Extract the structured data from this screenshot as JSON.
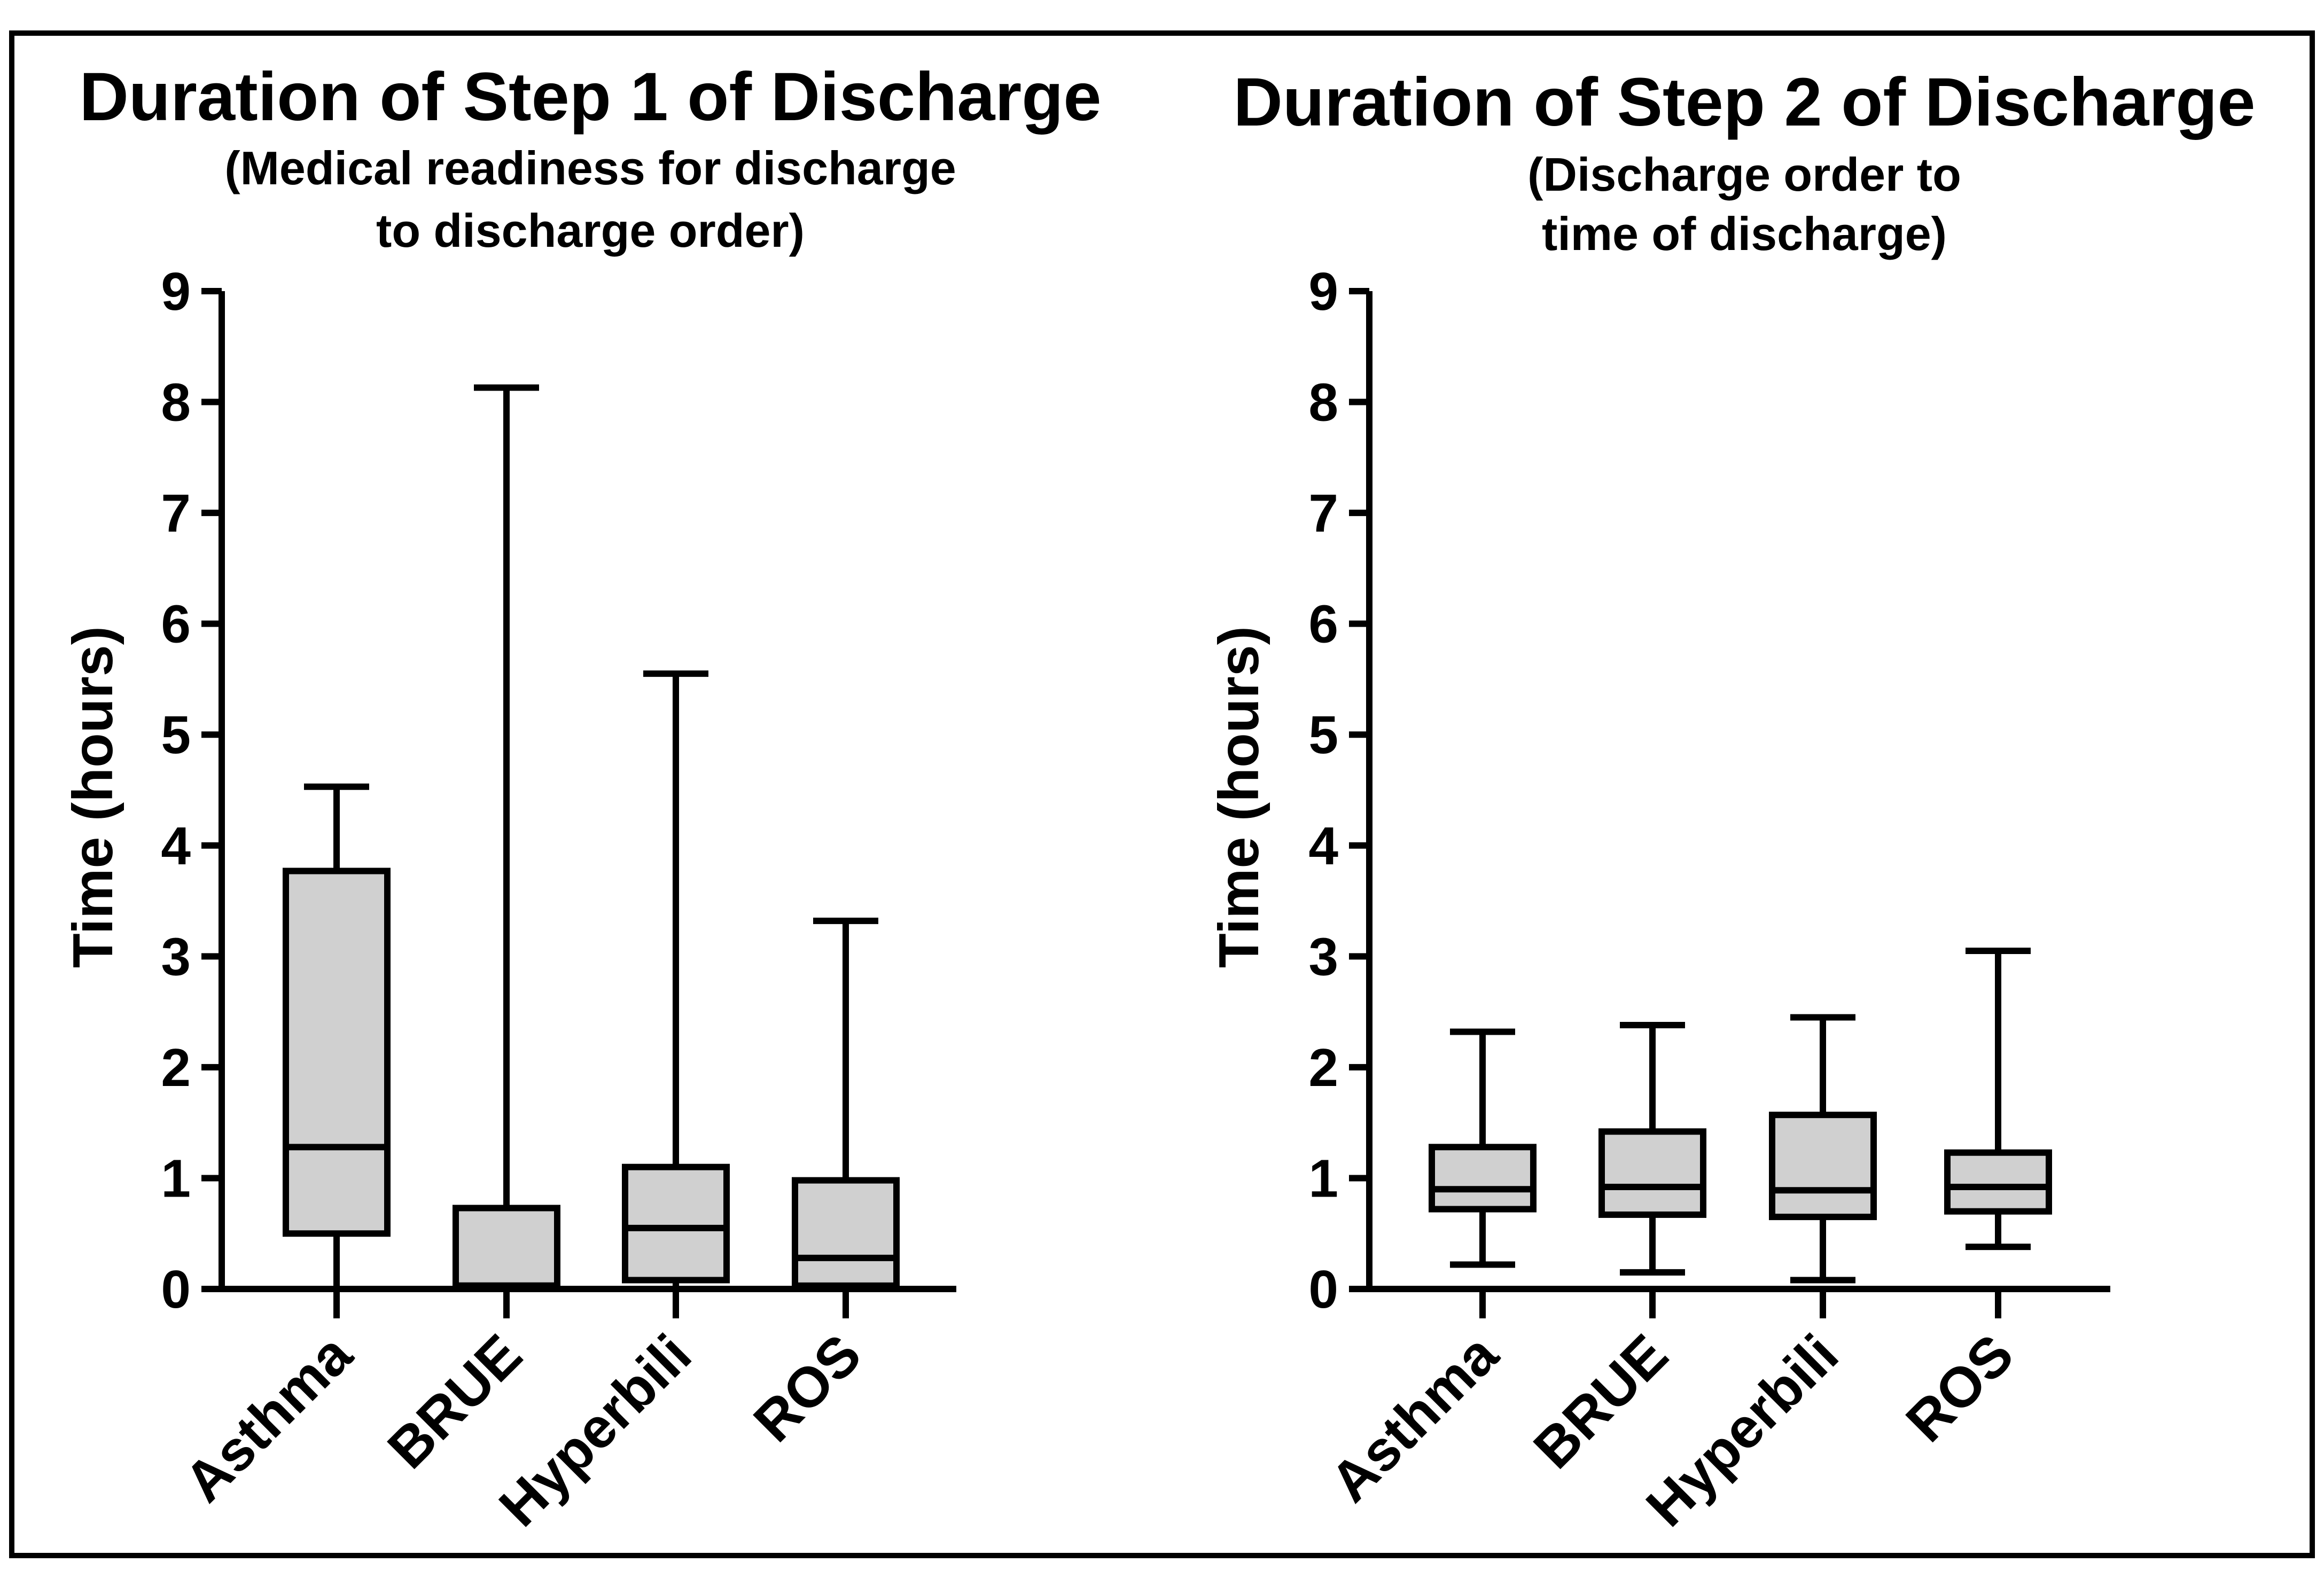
{
  "colors": {
    "box_fill": "#d0d0d0",
    "stroke": "#000000",
    "background": "#ffffff"
  },
  "chart_data": [
    {
      "type": "box",
      "title": "Duration of Step 1 of Discharge",
      "subtitle_lines": [
        "(Medical readiness for discharge",
        "to discharge order)"
      ],
      "xlabel": "",
      "ylabel": "Time (hours)",
      "ylim": [
        0,
        9
      ],
      "yticks": [
        "0",
        "1",
        "2",
        "3",
        "4",
        "5",
        "6",
        "7",
        "8",
        "9"
      ],
      "categories": [
        "Asthma",
        "BRUE",
        "Hyperbili",
        "ROS"
      ],
      "boxes": [
        {
          "category": "Asthma",
          "min": 0.0,
          "q1": 0.5,
          "median": 1.28,
          "q3": 3.77,
          "max": 4.53
        },
        {
          "category": "BRUE",
          "min": 0.0,
          "q1": 0.03,
          "median": 0.03,
          "q3": 0.73,
          "max": 8.13
        },
        {
          "category": "Hyperbili",
          "min": 0.0,
          "q1": 0.08,
          "median": 0.55,
          "q3": 1.1,
          "max": 5.55
        },
        {
          "category": "ROS",
          "min": 0.0,
          "q1": 0.03,
          "median": 0.28,
          "q3": 0.98,
          "max": 3.32
        }
      ],
      "grid": false
    },
    {
      "type": "box",
      "title": "Duration of Step 2 of Discharge",
      "subtitle_lines": [
        "(Discharge order to",
        "time of discharge)"
      ],
      "xlabel": "",
      "ylabel": "Time (hours)",
      "ylim": [
        0,
        9
      ],
      "yticks": [
        "0",
        "1",
        "2",
        "3",
        "4",
        "5",
        "6",
        "7",
        "8",
        "9"
      ],
      "categories": [
        "Asthma",
        "BRUE",
        "Hyperbili",
        "ROS"
      ],
      "boxes": [
        {
          "category": "Asthma",
          "min": 0.22,
          "q1": 0.72,
          "median": 0.9,
          "q3": 1.28,
          "max": 2.32
        },
        {
          "category": "BRUE",
          "min": 0.15,
          "q1": 0.67,
          "median": 0.92,
          "q3": 1.42,
          "max": 2.38
        },
        {
          "category": "Hyperbili",
          "min": 0.08,
          "q1": 0.65,
          "median": 0.89,
          "q3": 1.57,
          "max": 2.45
        },
        {
          "category": "ROS",
          "min": 0.38,
          "q1": 0.7,
          "median": 0.92,
          "q3": 1.23,
          "max": 3.05
        }
      ],
      "grid": false
    }
  ]
}
